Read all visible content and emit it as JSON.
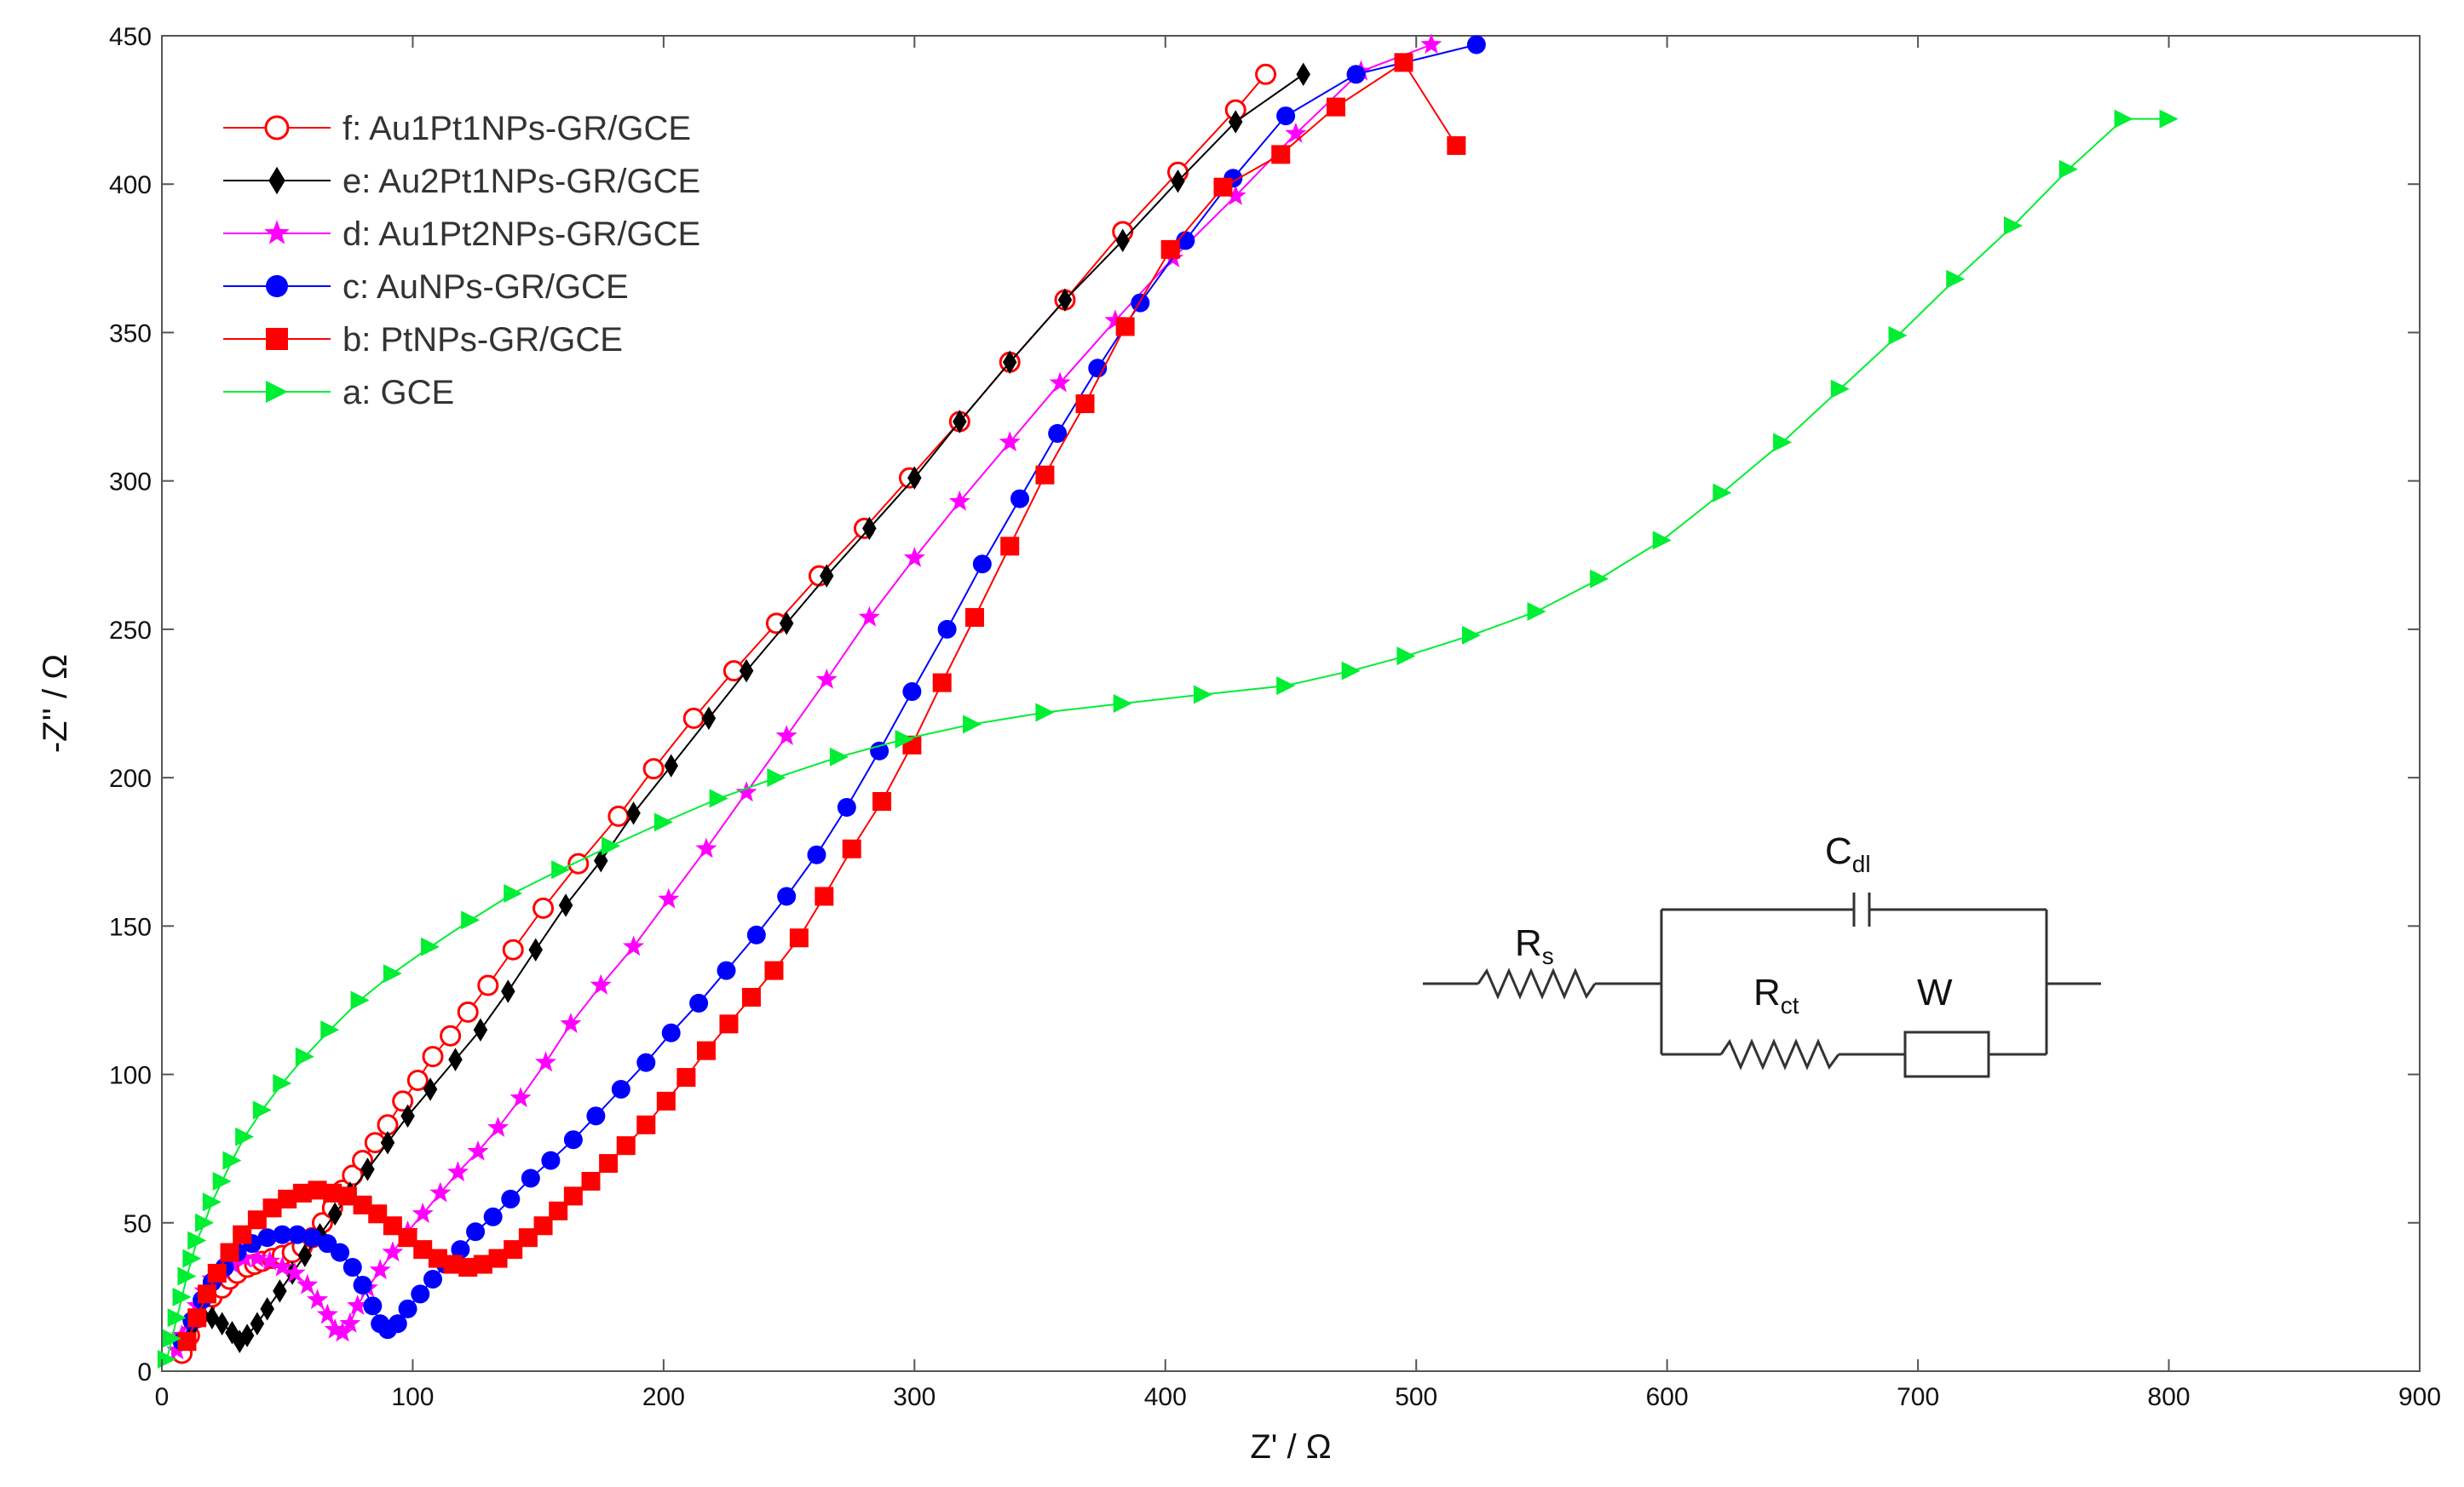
{
  "chart_data": {
    "type": "scatter",
    "xlabel": "Z' / Ω",
    "ylabel": "-Z'' / Ω",
    "xlim": [
      0,
      900
    ],
    "ylim": [
      0,
      450
    ],
    "x_ticks": [
      0,
      100,
      200,
      300,
      400,
      500,
      600,
      700,
      800,
      900
    ],
    "y_ticks": [
      0,
      50,
      100,
      150,
      200,
      250,
      300,
      350,
      400,
      450
    ],
    "grid": false,
    "legend_position": "top-left",
    "series": [
      {
        "name": "f: Au1Pt1NPs-GR/GCE",
        "color": "#ff0000",
        "marker": "open-circle",
        "points": [
          [
            8,
            6
          ],
          [
            11,
            12
          ],
          [
            14,
            18
          ],
          [
            17,
            22
          ],
          [
            20,
            25
          ],
          [
            24,
            28
          ],
          [
            27,
            31
          ],
          [
            30,
            33
          ],
          [
            34,
            35
          ],
          [
            37,
            36
          ],
          [
            40,
            37
          ],
          [
            44,
            38
          ],
          [
            48,
            39
          ],
          [
            52,
            40
          ],
          [
            56,
            42
          ],
          [
            60,
            45
          ],
          [
            64,
            50
          ],
          [
            68,
            55
          ],
          [
            72,
            61
          ],
          [
            76,
            66
          ],
          [
            80,
            71
          ],
          [
            85,
            77
          ],
          [
            90,
            83
          ],
          [
            96,
            91
          ],
          [
            102,
            98
          ],
          [
            108,
            106
          ],
          [
            115,
            113
          ],
          [
            122,
            121
          ],
          [
            130,
            130
          ],
          [
            140,
            142
          ],
          [
            152,
            156
          ],
          [
            166,
            171
          ],
          [
            182,
            187
          ],
          [
            196,
            203
          ],
          [
            212,
            220
          ],
          [
            228,
            236
          ],
          [
            245,
            252
          ],
          [
            262,
            268
          ],
          [
            280,
            284
          ],
          [
            298,
            301
          ],
          [
            318,
            320
          ],
          [
            338,
            340
          ],
          [
            360,
            361
          ],
          [
            383,
            384
          ],
          [
            405,
            404
          ],
          [
            428,
            425
          ],
          [
            440,
            437
          ]
        ]
      },
      {
        "name": "e: Au2Pt1NPs-GR/GCE",
        "color": "#000000",
        "marker": "filled-diamond",
        "points": [
          [
            12,
            15
          ],
          [
            16,
            19
          ],
          [
            20,
            18
          ],
          [
            24,
            16
          ],
          [
            28,
            13
          ],
          [
            31,
            10
          ],
          [
            34,
            12
          ],
          [
            38,
            16
          ],
          [
            42,
            21
          ],
          [
            47,
            27
          ],
          [
            52,
            33
          ],
          [
            57,
            39
          ],
          [
            63,
            46
          ],
          [
            69,
            53
          ],
          [
            75,
            60
          ],
          [
            82,
            68
          ],
          [
            90,
            77
          ],
          [
            98,
            86
          ],
          [
            107,
            95
          ],
          [
            117,
            105
          ],
          [
            127,
            115
          ],
          [
            138,
            128
          ],
          [
            149,
            142
          ],
          [
            161,
            157
          ],
          [
            175,
            172
          ],
          [
            188,
            188
          ],
          [
            203,
            204
          ],
          [
            218,
            220
          ],
          [
            233,
            236
          ],
          [
            249,
            252
          ],
          [
            265,
            268
          ],
          [
            282,
            284
          ],
          [
            300,
            301
          ],
          [
            318,
            320
          ],
          [
            338,
            340
          ],
          [
            360,
            361
          ],
          [
            383,
            381
          ],
          [
            405,
            401
          ],
          [
            428,
            421
          ],
          [
            455,
            437
          ]
        ]
      },
      {
        "name": "d: Au1Pt2NPs-GR/GCE",
        "color": "#ff00ff",
        "marker": "filled-star",
        "points": [
          [
            6,
            7
          ],
          [
            8,
            12
          ],
          [
            11,
            17
          ],
          [
            14,
            22
          ],
          [
            17,
            27
          ],
          [
            20,
            31
          ],
          [
            24,
            34
          ],
          [
            28,
            36
          ],
          [
            33,
            38
          ],
          [
            38,
            38
          ],
          [
            43,
            37
          ],
          [
            48,
            35
          ],
          [
            53,
            33
          ],
          [
            58,
            29
          ],
          [
            62,
            24
          ],
          [
            66,
            19
          ],
          [
            69,
            14
          ],
          [
            72,
            13
          ],
          [
            75,
            16
          ],
          [
            78,
            22
          ],
          [
            82,
            28
          ],
          [
            87,
            34
          ],
          [
            92,
            40
          ],
          [
            98,
            47
          ],
          [
            104,
            53
          ],
          [
            111,
            60
          ],
          [
            118,
            67
          ],
          [
            126,
            74
          ],
          [
            134,
            82
          ],
          [
            143,
            92
          ],
          [
            153,
            104
          ],
          [
            163,
            117
          ],
          [
            175,
            130
          ],
          [
            188,
            143
          ],
          [
            202,
            159
          ],
          [
            217,
            176
          ],
          [
            233,
            195
          ],
          [
            249,
            214
          ],
          [
            265,
            233
          ],
          [
            282,
            254
          ],
          [
            300,
            274
          ],
          [
            318,
            293
          ],
          [
            338,
            313
          ],
          [
            358,
            333
          ],
          [
            380,
            354
          ],
          [
            403,
            375
          ],
          [
            428,
            396
          ],
          [
            452,
            417
          ],
          [
            478,
            438
          ],
          [
            506,
            447
          ]
        ]
      },
      {
        "name": "c: AuNPs-GR/GCE",
        "color": "#0000ff",
        "marker": "filled-circle",
        "points": [
          [
            8,
            10
          ],
          [
            12,
            17
          ],
          [
            16,
            24
          ],
          [
            20,
            30
          ],
          [
            25,
            35
          ],
          [
            30,
            40
          ],
          [
            36,
            43
          ],
          [
            42,
            45
          ],
          [
            48,
            46
          ],
          [
            54,
            46
          ],
          [
            60,
            45
          ],
          [
            66,
            43
          ],
          [
            71,
            40
          ],
          [
            76,
            35
          ],
          [
            80,
            29
          ],
          [
            84,
            22
          ],
          [
            87,
            16
          ],
          [
            90,
            14
          ],
          [
            94,
            16
          ],
          [
            98,
            21
          ],
          [
            103,
            26
          ],
          [
            108,
            31
          ],
          [
            113,
            36
          ],
          [
            119,
            41
          ],
          [
            125,
            47
          ],
          [
            132,
            52
          ],
          [
            139,
            58
          ],
          [
            147,
            65
          ],
          [
            155,
            71
          ],
          [
            164,
            78
          ],
          [
            173,
            86
          ],
          [
            183,
            95
          ],
          [
            193,
            104
          ],
          [
            203,
            114
          ],
          [
            214,
            124
          ],
          [
            225,
            135
          ],
          [
            237,
            147
          ],
          [
            249,
            160
          ],
          [
            261,
            174
          ],
          [
            273,
            190
          ],
          [
            286,
            209
          ],
          [
            299,
            229
          ],
          [
            313,
            250
          ],
          [
            327,
            272
          ],
          [
            342,
            294
          ],
          [
            357,
            316
          ],
          [
            373,
            338
          ],
          [
            390,
            360
          ],
          [
            408,
            381
          ],
          [
            427,
            402
          ],
          [
            448,
            423
          ],
          [
            476,
            437
          ],
          [
            524,
            447
          ]
        ]
      },
      {
        "name": "b: PtNPs-GR/GCE",
        "color": "#ff0000",
        "marker": "filled-square",
        "points": [
          [
            10,
            10
          ],
          [
            14,
            18
          ],
          [
            18,
            26
          ],
          [
            22,
            33
          ],
          [
            27,
            40
          ],
          [
            32,
            46
          ],
          [
            38,
            51
          ],
          [
            44,
            55
          ],
          [
            50,
            58
          ],
          [
            56,
            60
          ],
          [
            62,
            61
          ],
          [
            68,
            60
          ],
          [
            74,
            59
          ],
          [
            80,
            56
          ],
          [
            86,
            53
          ],
          [
            92,
            49
          ],
          [
            98,
            45
          ],
          [
            104,
            41
          ],
          [
            110,
            38
          ],
          [
            116,
            36
          ],
          [
            122,
            35
          ],
          [
            128,
            36
          ],
          [
            134,
            38
          ],
          [
            140,
            41
          ],
          [
            146,
            45
          ],
          [
            152,
            49
          ],
          [
            158,
            54
          ],
          [
            164,
            59
          ],
          [
            171,
            64
          ],
          [
            178,
            70
          ],
          [
            185,
            76
          ],
          [
            193,
            83
          ],
          [
            201,
            91
          ],
          [
            209,
            99
          ],
          [
            217,
            108
          ],
          [
            226,
            117
          ],
          [
            235,
            126
          ],
          [
            244,
            135
          ],
          [
            254,
            146
          ],
          [
            264,
            160
          ],
          [
            275,
            176
          ],
          [
            287,
            192
          ],
          [
            299,
            211
          ],
          [
            311,
            232
          ],
          [
            324,
            254
          ],
          [
            338,
            278
          ],
          [
            352,
            302
          ],
          [
            368,
            326
          ],
          [
            384,
            352
          ],
          [
            402,
            378
          ],
          [
            423,
            399
          ],
          [
            446,
            410
          ],
          [
            468,
            426
          ],
          [
            495,
            441
          ],
          [
            516,
            413
          ]
        ]
      },
      {
        "name": "a: GCE",
        "color": "#00ee33",
        "marker": "filled-triangle-right",
        "points": [
          [
            2,
            4
          ],
          [
            4,
            11
          ],
          [
            6,
            18
          ],
          [
            8,
            25
          ],
          [
            10,
            32
          ],
          [
            12,
            38
          ],
          [
            14,
            44
          ],
          [
            17,
            50
          ],
          [
            20,
            57
          ],
          [
            24,
            64
          ],
          [
            28,
            71
          ],
          [
            33,
            79
          ],
          [
            40,
            88
          ],
          [
            48,
            97
          ],
          [
            57,
            106
          ],
          [
            67,
            115
          ],
          [
            79,
            125
          ],
          [
            92,
            134
          ],
          [
            107,
            143
          ],
          [
            123,
            152
          ],
          [
            140,
            161
          ],
          [
            159,
            169
          ],
          [
            179,
            177
          ],
          [
            200,
            185
          ],
          [
            222,
            193
          ],
          [
            245,
            200
          ],
          [
            270,
            207
          ],
          [
            296,
            213
          ],
          [
            323,
            218
          ],
          [
            352,
            222
          ],
          [
            383,
            225
          ],
          [
            415,
            228
          ],
          [
            448,
            231
          ],
          [
            474,
            236
          ],
          [
            496,
            241
          ],
          [
            522,
            248
          ],
          [
            548,
            256
          ],
          [
            573,
            267
          ],
          [
            598,
            280
          ],
          [
            622,
            296
          ],
          [
            646,
            313
          ],
          [
            669,
            331
          ],
          [
            692,
            349
          ],
          [
            715,
            368
          ],
          [
            738,
            386
          ],
          [
            760,
            405
          ],
          [
            782,
            422
          ],
          [
            800,
            422
          ]
        ]
      }
    ]
  },
  "inset": {
    "rs_main": "R",
    "rs_sub": "s",
    "cdl_main": "C",
    "cdl_sub": "dl",
    "rct_main": "R",
    "rct_sub": "ct",
    "w_label": "W"
  }
}
